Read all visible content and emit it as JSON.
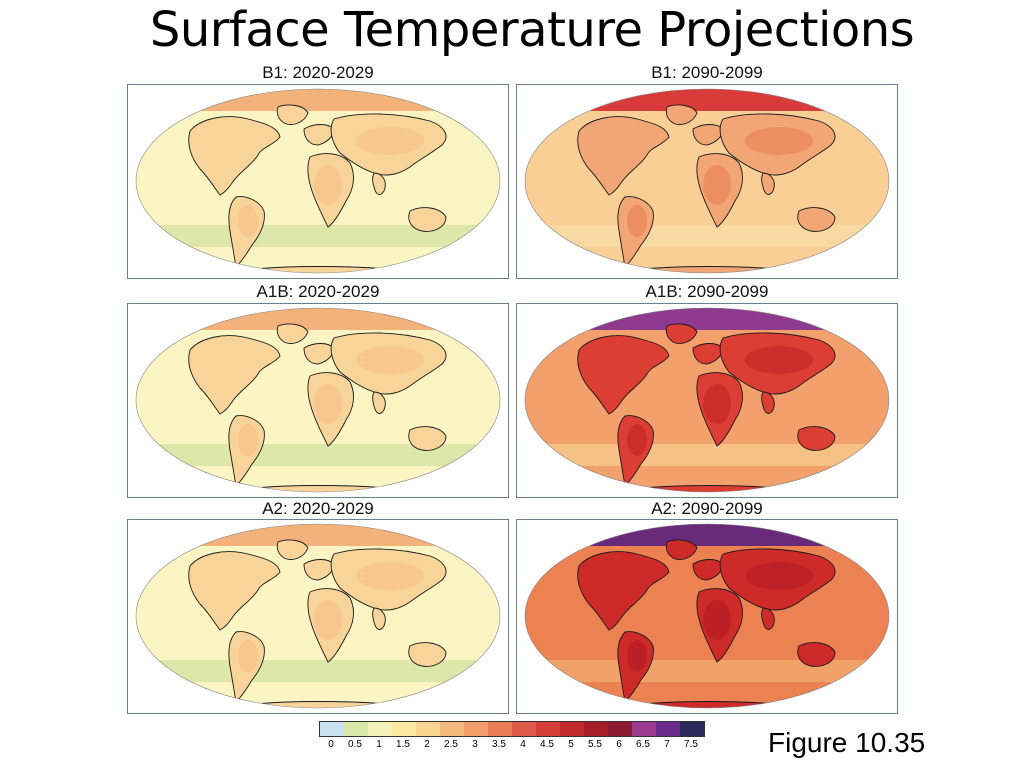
{
  "slide": {
    "title": "Surface Temperature Projections",
    "figure_label": "Figure  10.35"
  },
  "panels": [
    {
      "title": "B1: 2020-2029",
      "ocean": "#fbf5c3",
      "land": "#f8d49a",
      "arctic": "#f2b27a",
      "hot": "#f6c48c",
      "band": "#d8e6a6"
    },
    {
      "title": "B1: 2090-2099",
      "ocean": "#f9cf95",
      "land": "#f2a676",
      "arctic": "#d93a3a",
      "hot": "#ec8a5e",
      "band": "#f7d9a2"
    },
    {
      "title": "A1B: 2020-2029",
      "ocean": "#fbf5c3",
      "land": "#f8d49a",
      "arctic": "#f2b27a",
      "hot": "#f6c48c",
      "band": "#d8e6a6"
    },
    {
      "title": "A1B: 2090-2099",
      "ocean": "#f2a06c",
      "land": "#dc3e34",
      "arctic": "#8e3a8e",
      "hot": "#c92a2a",
      "band": "#f6c487"
    },
    {
      "title": "A2: 2020-2029",
      "ocean": "#fbf5c3",
      "land": "#f8d49a",
      "arctic": "#f2b27a",
      "hot": "#f6c48c",
      "band": "#d8e6a6"
    },
    {
      "title": "A2: 2090-2099",
      "ocean": "#ec8152",
      "land": "#cf2a2a",
      "arctic": "#6a2a7a",
      "hot": "#b81f25",
      "band": "#f2a56c"
    }
  ],
  "legend": {
    "labels": [
      "0",
      "0.5",
      "1",
      "1.5",
      "2",
      "2.5",
      "3",
      "3.5",
      "4",
      "4.5",
      "5",
      "5.5",
      "6",
      "6.5",
      "7",
      "7.5"
    ],
    "colors": [
      "#c9e1ee",
      "#d9e8a8",
      "#f2f2b8",
      "#fbe9a2",
      "#f8d490",
      "#f4b97c",
      "#f09e6a",
      "#ea7d5a",
      "#e05a4a",
      "#d43e3a",
      "#c22a2e",
      "#a81e28",
      "#8e1a32",
      "#9a3a8e",
      "#6a2a8a",
      "#2a2a5a"
    ]
  }
}
